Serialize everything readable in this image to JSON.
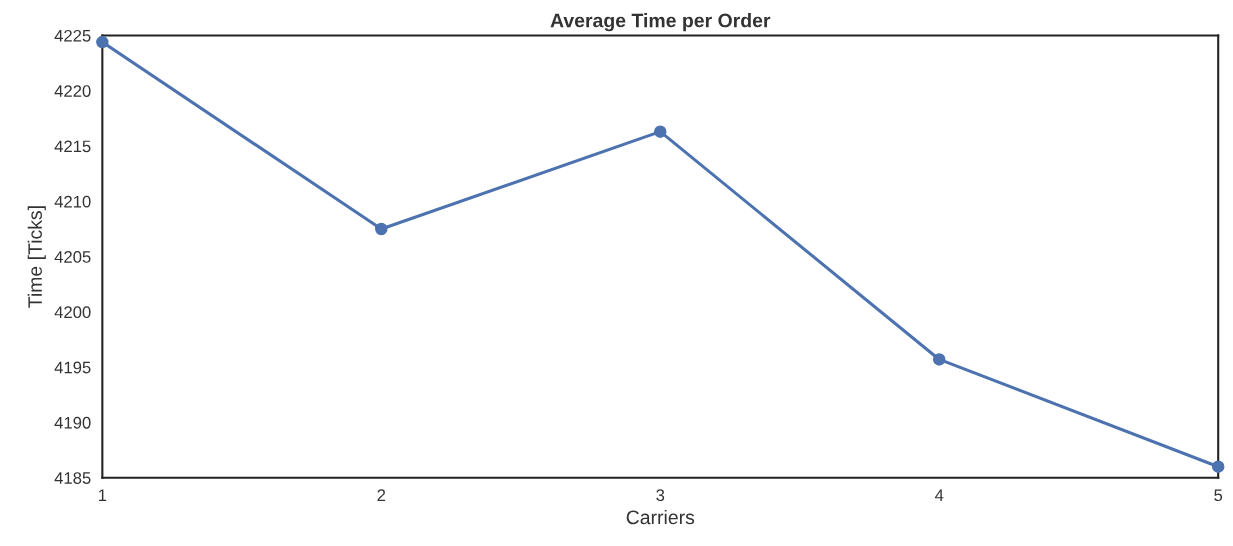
{
  "chart_data": {
    "type": "line",
    "title": "Average Time per Order",
    "xlabel": "Carriers",
    "ylabel": "Time [Ticks]",
    "x": [
      1,
      2,
      3,
      4,
      5
    ],
    "series": [
      {
        "color": "#4c72b0",
        "values": [
          4224.4,
          4207.5,
          4216.3,
          4195.7,
          4186.0
        ]
      }
    ],
    "xlim": [
      1,
      5
    ],
    "xticks": [
      1,
      2,
      3,
      4,
      5
    ],
    "ylim": [
      4185,
      4225
    ],
    "yticks": [
      4185,
      4190,
      4195,
      4200,
      4205,
      4210,
      4215,
      4220,
      4225
    ],
    "marker": "circle",
    "line_style": "solid",
    "grid": false
  }
}
